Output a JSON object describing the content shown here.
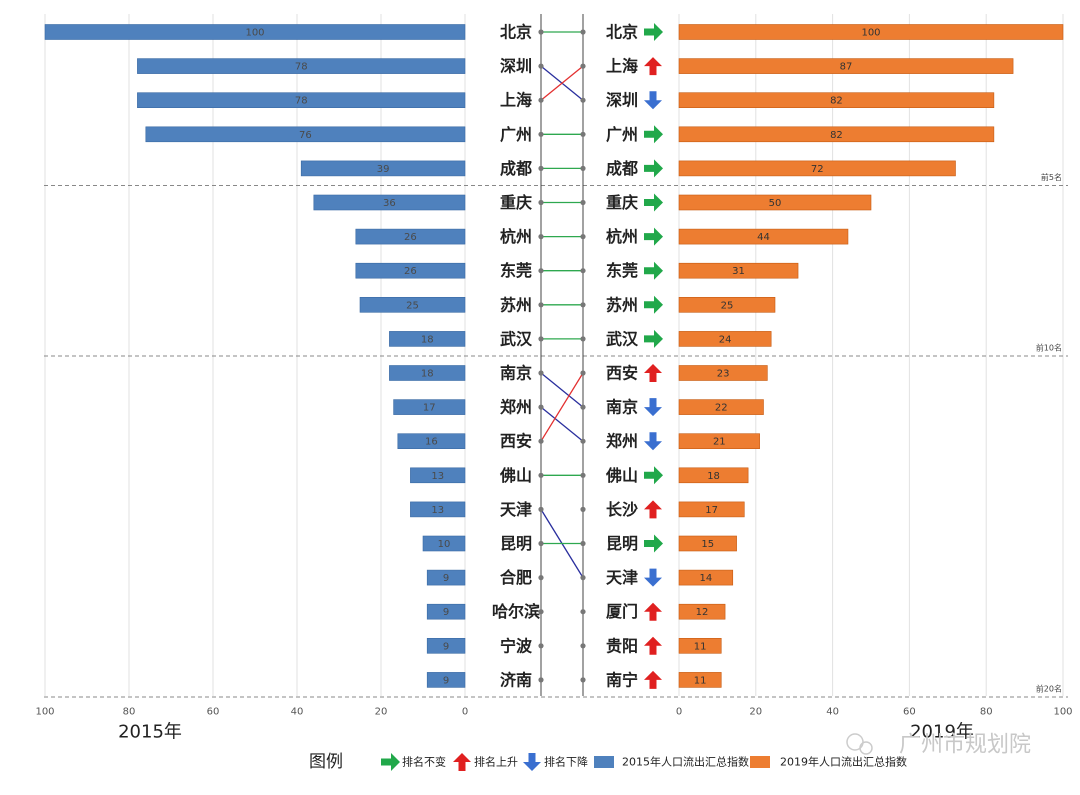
{
  "chart_data": {
    "type": "bar",
    "left": {
      "year_label": "2015年",
      "axis_ticks": [
        100,
        80,
        60,
        40,
        20,
        0
      ],
      "xlim": [
        0,
        100
      ],
      "grid": true,
      "cities": [
        "北京",
        "深圳",
        "上海",
        "广州",
        "成都",
        "重庆",
        "杭州",
        "东莞",
        "苏州",
        "武汉",
        "南京",
        "郑州",
        "西安",
        "佛山",
        "天津",
        "昆明",
        "合肥",
        "哈尔滨",
        "宁波",
        "济南"
      ],
      "values": [
        100,
        78,
        78,
        76,
        39,
        36,
        26,
        26,
        25,
        18,
        18,
        17,
        16,
        13,
        13,
        10,
        9,
        9,
        9,
        9
      ]
    },
    "right": {
      "year_label": "2019年",
      "axis_ticks": [
        0,
        20,
        40,
        60,
        80,
        100
      ],
      "xlim": [
        0,
        100
      ],
      "grid": true,
      "cities": [
        "北京",
        "上海",
        "深圳",
        "广州",
        "成都",
        "重庆",
        "杭州",
        "东莞",
        "苏州",
        "武汉",
        "西安",
        "南京",
        "郑州",
        "佛山",
        "长沙",
        "昆明",
        "天津",
        "厦门",
        "贵阳",
        "南宁"
      ],
      "values": [
        100,
        87,
        82,
        82,
        72,
        50,
        44,
        31,
        25,
        24,
        23,
        22,
        21,
        18,
        17,
        15,
        14,
        12,
        11,
        11
      ],
      "trend": [
        "same",
        "up",
        "down",
        "same",
        "same",
        "same",
        "same",
        "same",
        "same",
        "same",
        "up",
        "down",
        "down",
        "same",
        "up",
        "same",
        "down",
        "up",
        "up",
        "up"
      ]
    },
    "rank_links": [
      {
        "from": 0,
        "to": 0
      },
      {
        "from": 1,
        "to": 2
      },
      {
        "from": 2,
        "to": 1
      },
      {
        "from": 3,
        "to": 3
      },
      {
        "from": 4,
        "to": 4
      },
      {
        "from": 5,
        "to": 5
      },
      {
        "from": 6,
        "to": 6
      },
      {
        "from": 7,
        "to": 7
      },
      {
        "from": 8,
        "to": 8
      },
      {
        "from": 9,
        "to": 9
      },
      {
        "from": 10,
        "to": 11
      },
      {
        "from": 11,
        "to": 12
      },
      {
        "from": 12,
        "to": 10
      },
      {
        "from": 13,
        "to": 13
      },
      {
        "from": 14,
        "to": 16
      },
      {
        "from": 15,
        "to": 15
      }
    ],
    "dividers": [
      {
        "after_rank": 5,
        "label": "前5名"
      },
      {
        "after_rank": 10,
        "label": "前10名"
      },
      {
        "after_rank": 20,
        "label": "前20名"
      }
    ],
    "legend": {
      "title": "图例",
      "items": [
        {
          "kind": "same",
          "label": "排名不变"
        },
        {
          "kind": "up",
          "label": "排名上升"
        },
        {
          "kind": "down",
          "label": "排名下降"
        },
        {
          "kind": "bar2015",
          "label": "2015年人口流出汇总指数"
        },
        {
          "kind": "bar2019",
          "label": "2019年人口流出汇总指数"
        }
      ]
    },
    "colors": {
      "bar2015": "#4f81bd",
      "bar2015_edge": "#3a6aa3",
      "bar2019": "#ed7d31",
      "bar2019_edge": "#c55a11",
      "same": "#21a84a",
      "up": "#e02020",
      "down": "#3a6fd0",
      "link_same": "#2ea84f",
      "link_up": "#e33030",
      "link_down": "#2a2f9e"
    }
  },
  "watermark": {
    "text": "广州市规划院"
  }
}
